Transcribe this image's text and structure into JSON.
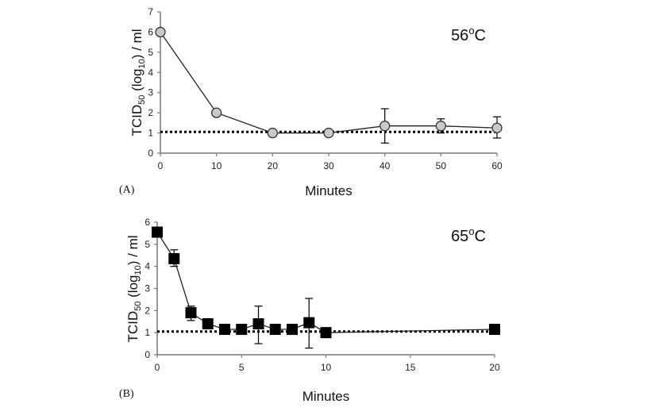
{
  "chart_data": [
    {
      "type": "line",
      "panel_label": "(A)",
      "annotation": "56",
      "annotation_sup": "o",
      "annotation_unit": "C",
      "xlabel": "Minutes",
      "ylabel_main": "TCID",
      "ylabel_sub1": "50",
      "ylabel_mid": " (log",
      "ylabel_sub2": "10",
      "ylabel_end": ") / ml",
      "xlim": [
        0,
        60
      ],
      "ylim": [
        0,
        7
      ],
      "xticks": [
        0,
        10,
        20,
        30,
        40,
        50,
        60
      ],
      "yticks": [
        0,
        1,
        2,
        3,
        4,
        5,
        6,
        7
      ],
      "marker": "circle",
      "marker_color": "#c8c8c8",
      "detection_limit": 1.05,
      "grid": false,
      "x": [
        0,
        10,
        20,
        30,
        40,
        50,
        60
      ],
      "y": [
        6.0,
        2.0,
        1.0,
        1.0,
        1.35,
        1.35,
        1.25
      ],
      "err_low": [
        null,
        null,
        null,
        null,
        0.5,
        1.0,
        0.75
      ],
      "err_high": [
        null,
        null,
        null,
        null,
        2.2,
        1.7,
        1.8
      ]
    },
    {
      "type": "line",
      "panel_label": "(B)",
      "annotation": "65",
      "annotation_sup": "o",
      "annotation_unit": "C",
      "xlabel": "Minutes",
      "ylabel_main": "TCID",
      "ylabel_sub1": "50",
      "ylabel_mid": " (log",
      "ylabel_sub2": "10",
      "ylabel_end": ") / ml",
      "xlim": [
        0,
        20
      ],
      "ylim": [
        0,
        6
      ],
      "xticks": [
        0,
        5,
        10,
        15,
        20
      ],
      "yticks": [
        0,
        1,
        2,
        3,
        4,
        5,
        6
      ],
      "marker": "square",
      "marker_color": "#000000",
      "detection_limit": 1.05,
      "grid": false,
      "x": [
        0,
        1,
        2,
        3,
        4,
        5,
        6,
        7,
        8,
        9,
        10,
        20
      ],
      "y": [
        5.55,
        4.35,
        1.9,
        1.4,
        1.15,
        1.15,
        1.4,
        1.15,
        1.15,
        1.45,
        1.0,
        1.15
      ],
      "err_low": [
        null,
        4.0,
        1.55,
        null,
        null,
        null,
        0.5,
        null,
        null,
        0.3,
        null,
        null
      ],
      "err_high": [
        null,
        4.75,
        2.2,
        null,
        null,
        null,
        2.2,
        null,
        null,
        2.55,
        null,
        null
      ]
    }
  ]
}
